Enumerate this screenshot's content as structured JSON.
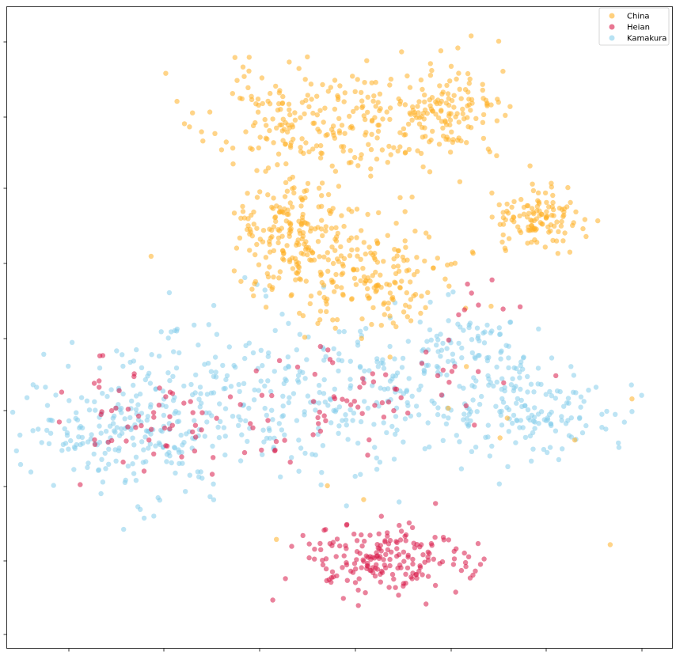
{
  "chart_data": {
    "type": "scatter",
    "title": "",
    "xlabel": "",
    "ylabel": "",
    "xlim": [
      -55,
      55
    ],
    "ylim": [
      -55,
      55
    ],
    "grid": false,
    "tick_labels_visible": false,
    "legend_position": "top-right",
    "series": [
      {
        "name": "China",
        "color": "#FFB027",
        "clusters": [
          {
            "cx": -2,
            "cy": 35,
            "sx": 10,
            "sy": 5,
            "n": 260
          },
          {
            "cx": 18,
            "cy": 37,
            "sx": 4,
            "sy": 3.5,
            "n": 110
          },
          {
            "cx": 33,
            "cy": 19.5,
            "sx": 3.8,
            "sy": 2.6,
            "n": 120
          },
          {
            "cx": -8,
            "cy": 17,
            "sx": 5,
            "sy": 4.5,
            "n": 170
          },
          {
            "cx": 4,
            "cy": 9,
            "sx": 8,
            "sy": 4.5,
            "n": 200
          },
          {
            "cx": 2,
            "cy": -9,
            "sx": 25,
            "sy": 12,
            "n": 14
          }
        ],
        "seed": 11
      },
      {
        "name": "Heian",
        "color": "#D81B4A",
        "clusters": [
          {
            "cx": 7,
            "cy": -40,
            "sx": 7,
            "sy": 3,
            "n": 190
          },
          {
            "cx": -32,
            "cy": -15,
            "sx": 7,
            "sy": 5,
            "n": 55
          },
          {
            "cx": -5,
            "cy": -15,
            "sx": 10,
            "sy": 5,
            "n": 45
          },
          {
            "cx": 12,
            "cy": -10,
            "sx": 10,
            "sy": 4,
            "n": 25
          },
          {
            "cx": 26,
            "cy": 4,
            "sx": 3,
            "sy": 2,
            "n": 8
          }
        ],
        "seed": 23
      },
      {
        "name": "Kamakura",
        "color": "#87CEEB",
        "clusters": [
          {
            "cx": -43,
            "cy": -17,
            "sx": 5,
            "sy": 4,
            "n": 60
          },
          {
            "cx": -31,
            "cy": -18,
            "sx": 7,
            "sy": 6,
            "n": 170
          },
          {
            "cx": -2,
            "cy": -13,
            "sx": 13,
            "sy": 6,
            "n": 230
          },
          {
            "cx": 22,
            "cy": -4,
            "sx": 6,
            "sy": 4,
            "n": 90
          },
          {
            "cx": 30,
            "cy": -14,
            "sx": 8,
            "sy": 4,
            "n": 150
          },
          {
            "cx": -20,
            "cy": -3,
            "sx": 13,
            "sy": 6,
            "n": 60
          }
        ],
        "seed": 37
      }
    ]
  }
}
